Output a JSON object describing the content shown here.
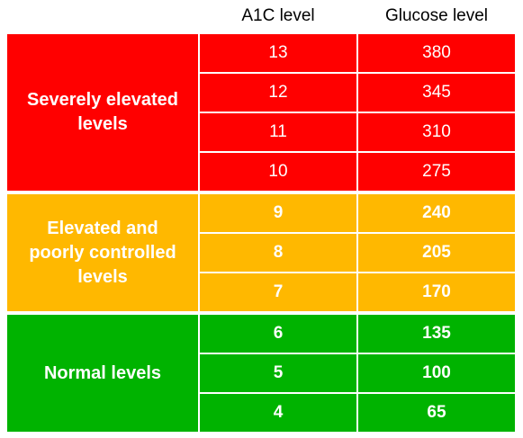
{
  "headers": {
    "a1c": "A1C level",
    "glucose": "Glucose level"
  },
  "groups": [
    {
      "label": "Severely elevated levels",
      "color": "#ff0000",
      "rows": [
        {
          "a1c": "13",
          "glucose": "380"
        },
        {
          "a1c": "12",
          "glucose": "345"
        },
        {
          "a1c": "11",
          "glucose": "310"
        },
        {
          "a1c": "10",
          "glucose": "275"
        }
      ]
    },
    {
      "label": "Elevated and poorly controlled levels",
      "color": "#ffb800",
      "rows": [
        {
          "a1c": "9",
          "glucose": "240"
        },
        {
          "a1c": "8",
          "glucose": "205"
        },
        {
          "a1c": "7",
          "glucose": "170"
        }
      ]
    },
    {
      "label": "Normal levels",
      "color": "#00b300",
      "rows": [
        {
          "a1c": "6",
          "glucose": "135"
        },
        {
          "a1c": "5",
          "glucose": "100"
        },
        {
          "a1c": "4",
          "glucose": "65"
        }
      ]
    }
  ]
}
